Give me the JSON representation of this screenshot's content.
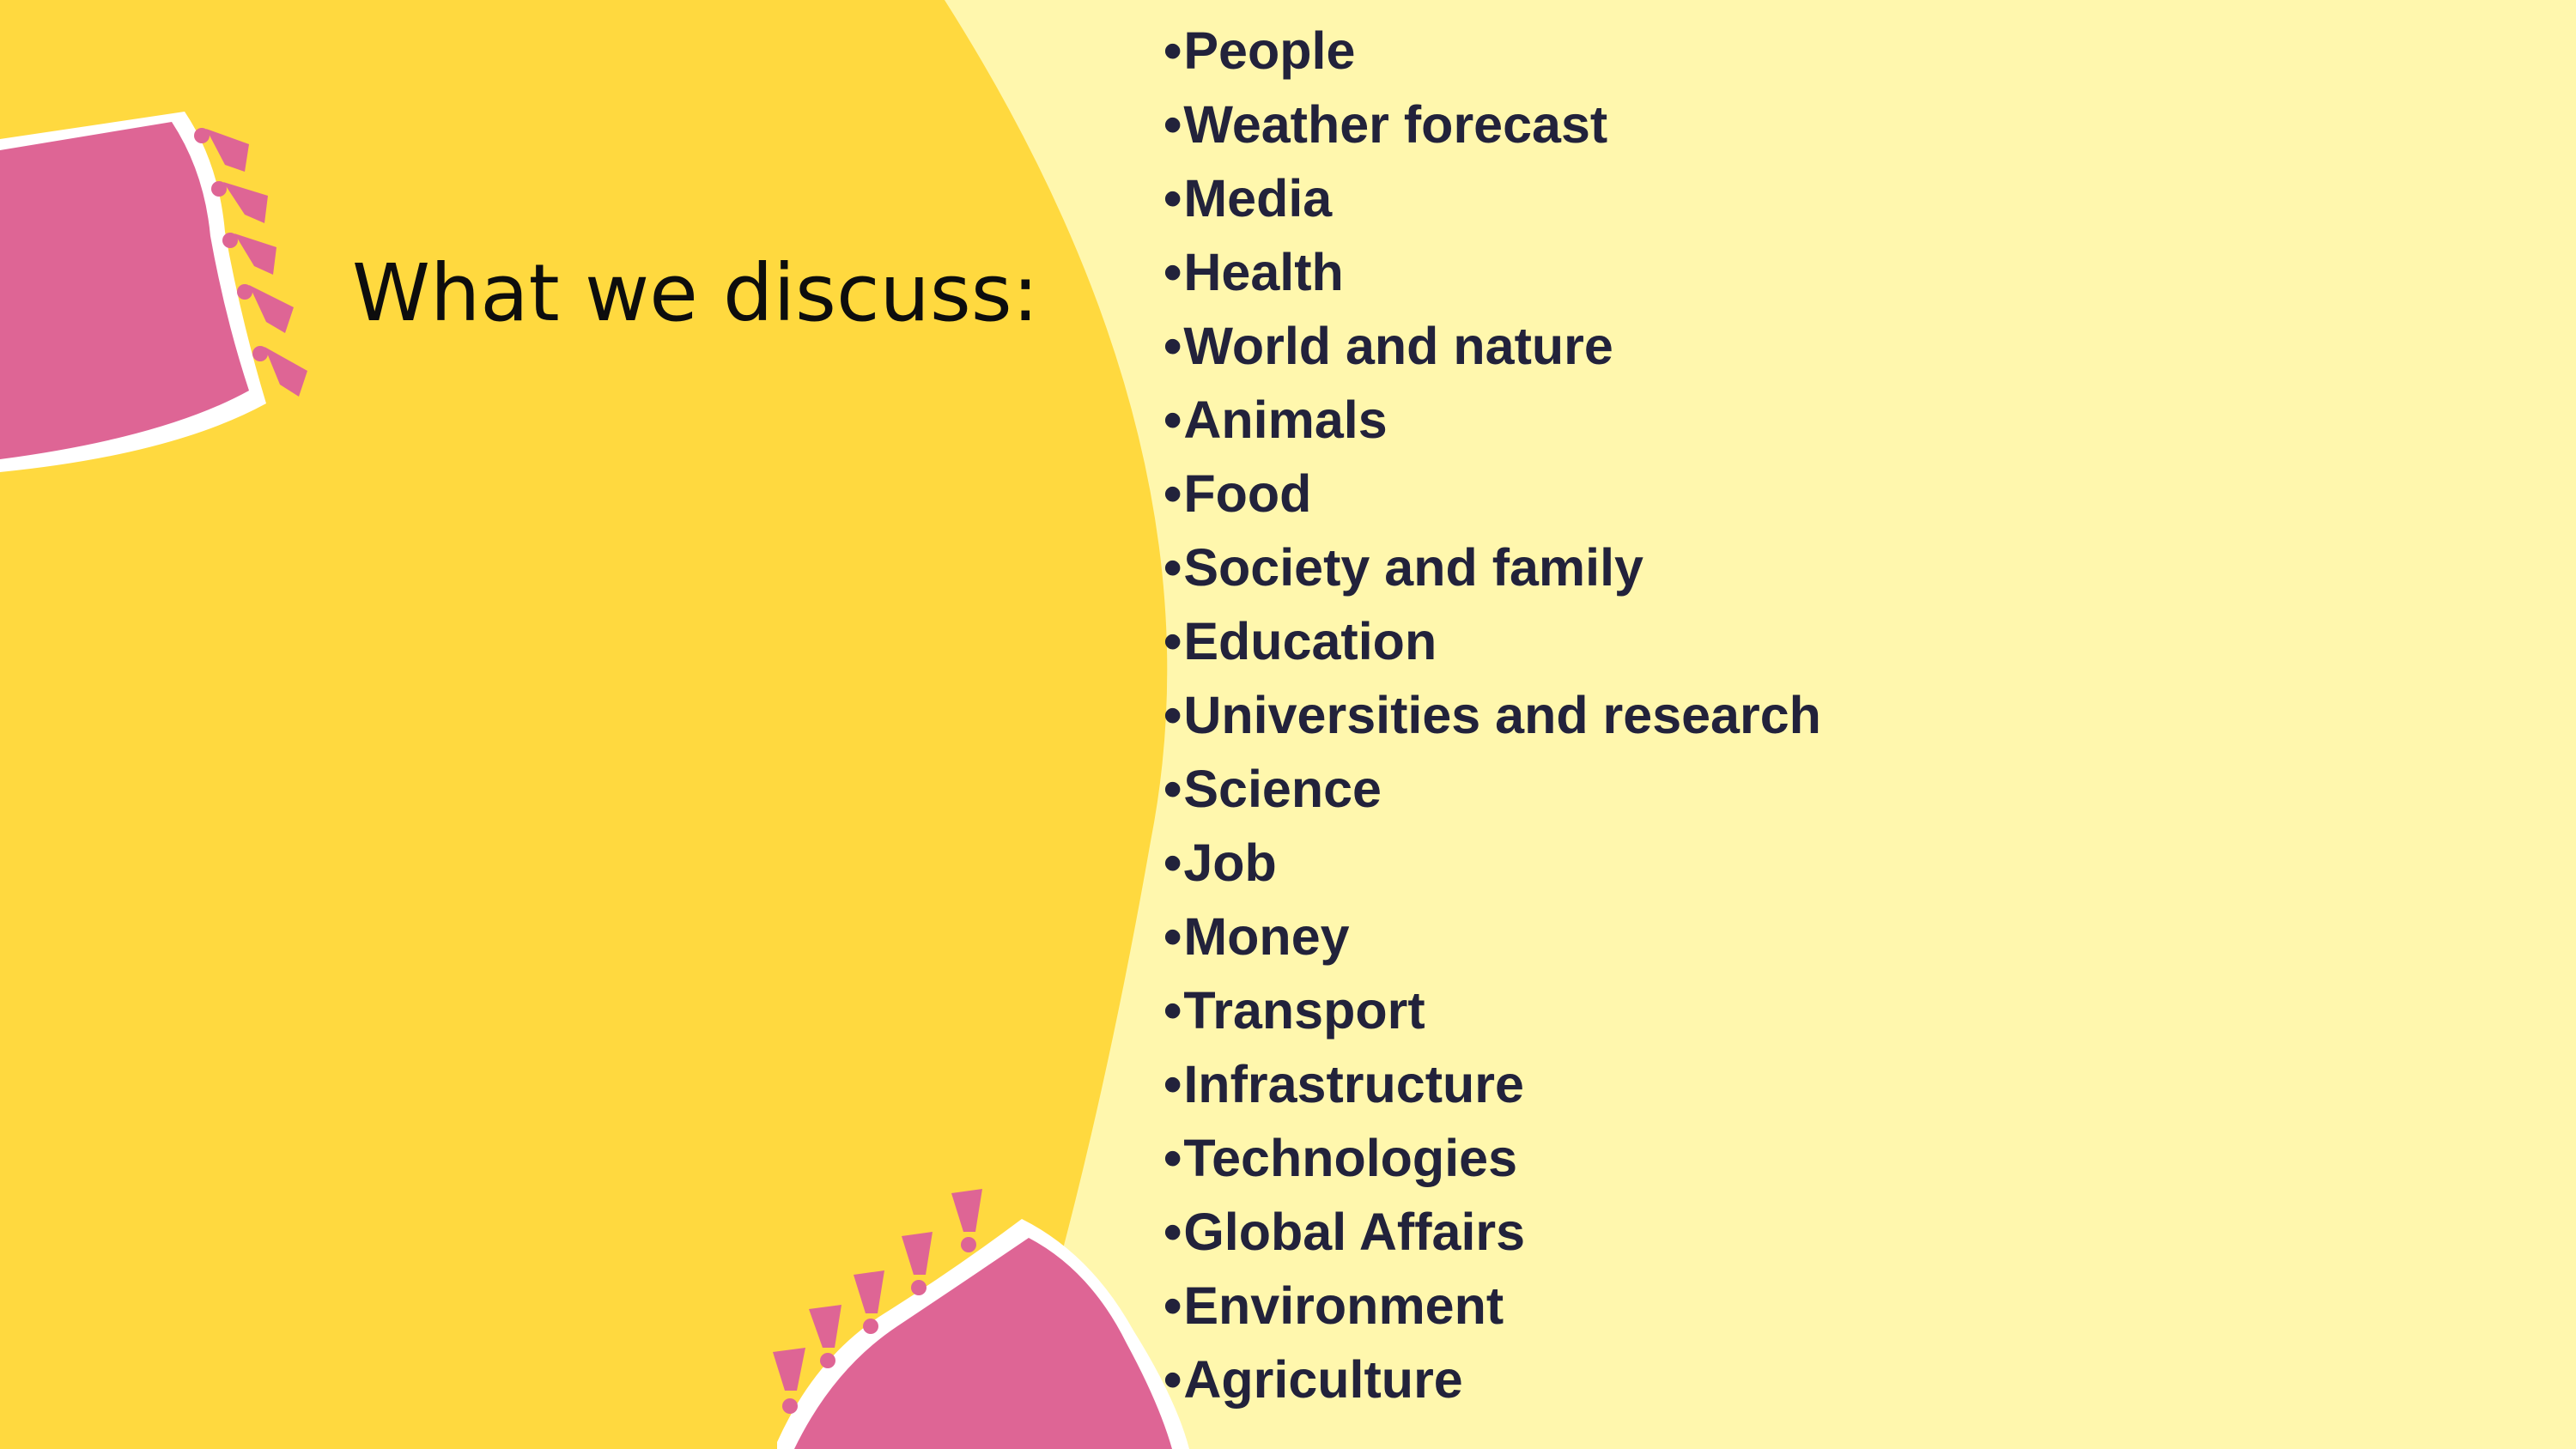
{
  "slide": {
    "title": "What we discuss:",
    "topics": [
      "People",
      "Weather forecast",
      "Media",
      "Health",
      "World and nature",
      "Animals",
      "Food",
      "Society and family",
      "Education",
      "Universities and research",
      "Science",
      "Job",
      "Money",
      "Transport",
      "Infrastructure",
      "Technologies",
      "Global Affairs",
      "Environment",
      "Agriculture"
    ]
  },
  "colors": {
    "background": "#FFF7AD",
    "accent_yellow": "#FFD93F",
    "pillow_pink": "#DE6595",
    "text_dark": "#22223B",
    "title_text": "#0d0d0d"
  },
  "decorations": [
    "pillow-top-left",
    "pillow-bottom-center"
  ]
}
